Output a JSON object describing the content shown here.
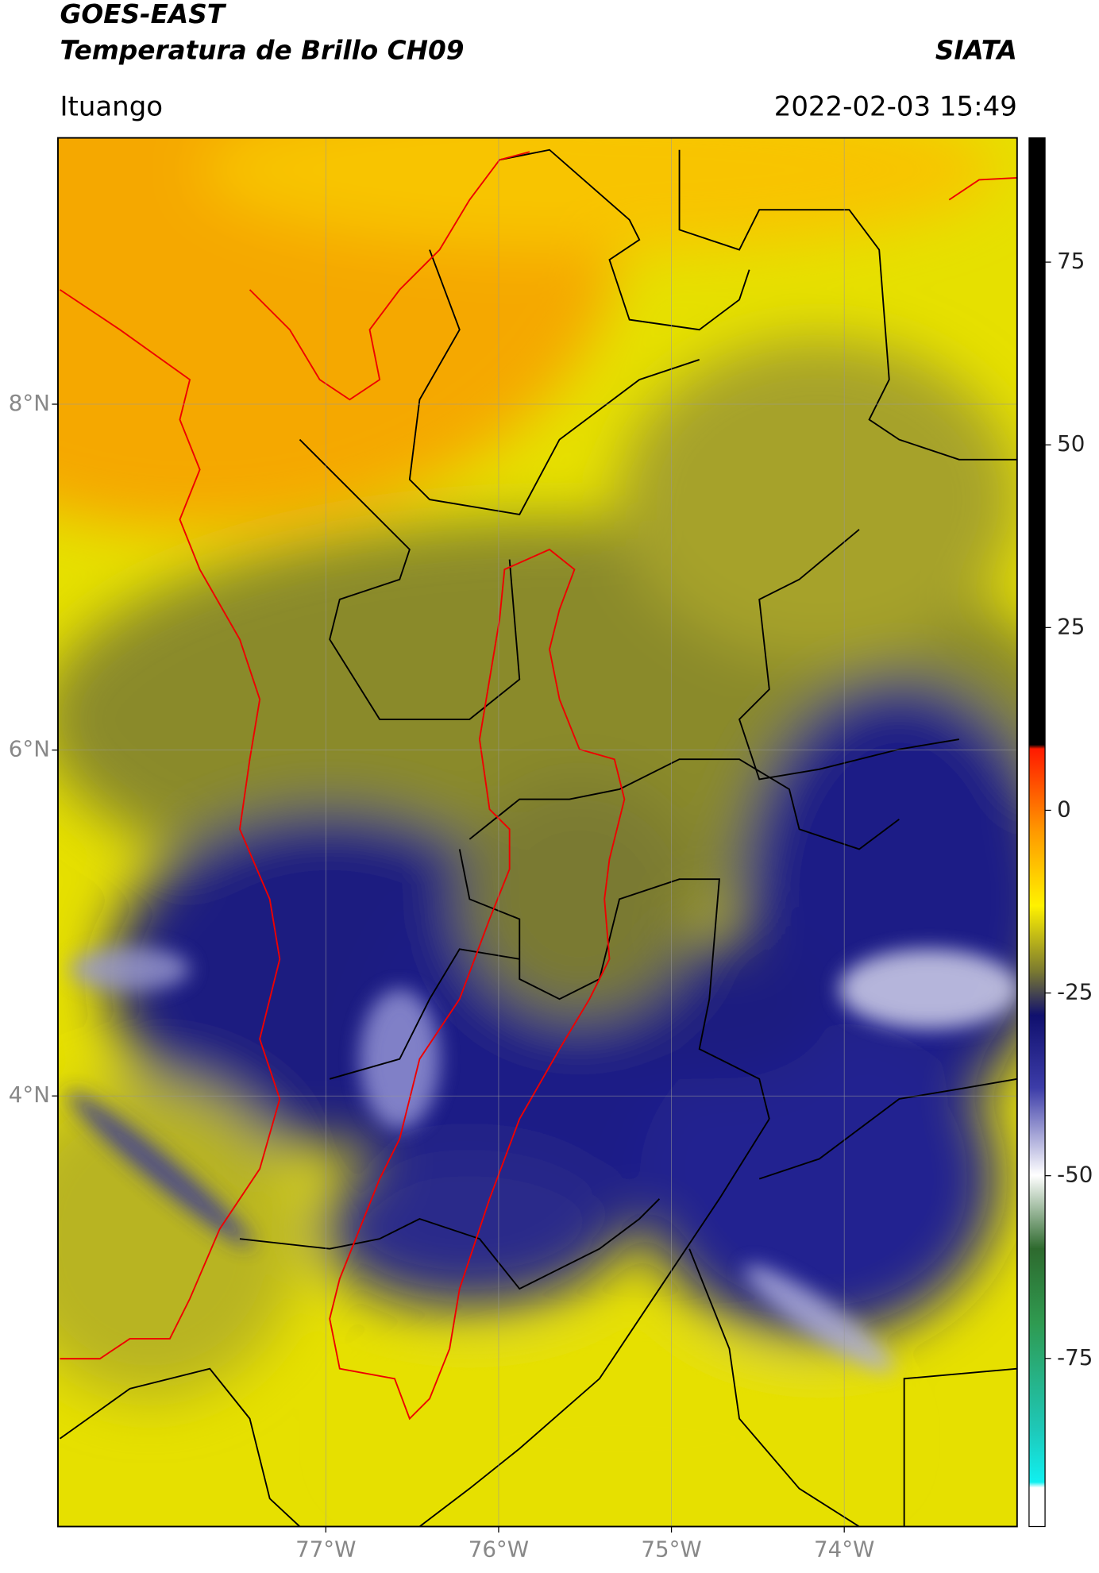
{
  "chart_data": {
    "type": "map",
    "title": "GOES-EAST",
    "subtitle": "Temperatura de Brillo CH09",
    "source": "SIATA",
    "region": "Ituango",
    "timestamp": "2022-02-03 15:49",
    "xlim": [
      -78.55,
      -73.0
    ],
    "ylim": [
      1.51,
      9.54
    ],
    "xticks": [
      {
        "value": -77,
        "label": "77°W"
      },
      {
        "value": -76,
        "label": "76°W"
      },
      {
        "value": -75,
        "label": "75°W"
      },
      {
        "value": -74,
        "label": "74°W"
      }
    ],
    "yticks": [
      {
        "value": 8,
        "label": "8°N"
      },
      {
        "value": 6,
        "label": "6°N"
      },
      {
        "value": 4,
        "label": "4°N"
      }
    ],
    "clim": [
      -98,
      92
    ],
    "cticks": [
      75,
      50,
      25,
      0,
      -25,
      -50,
      -75
    ],
    "grid": true
  }
}
